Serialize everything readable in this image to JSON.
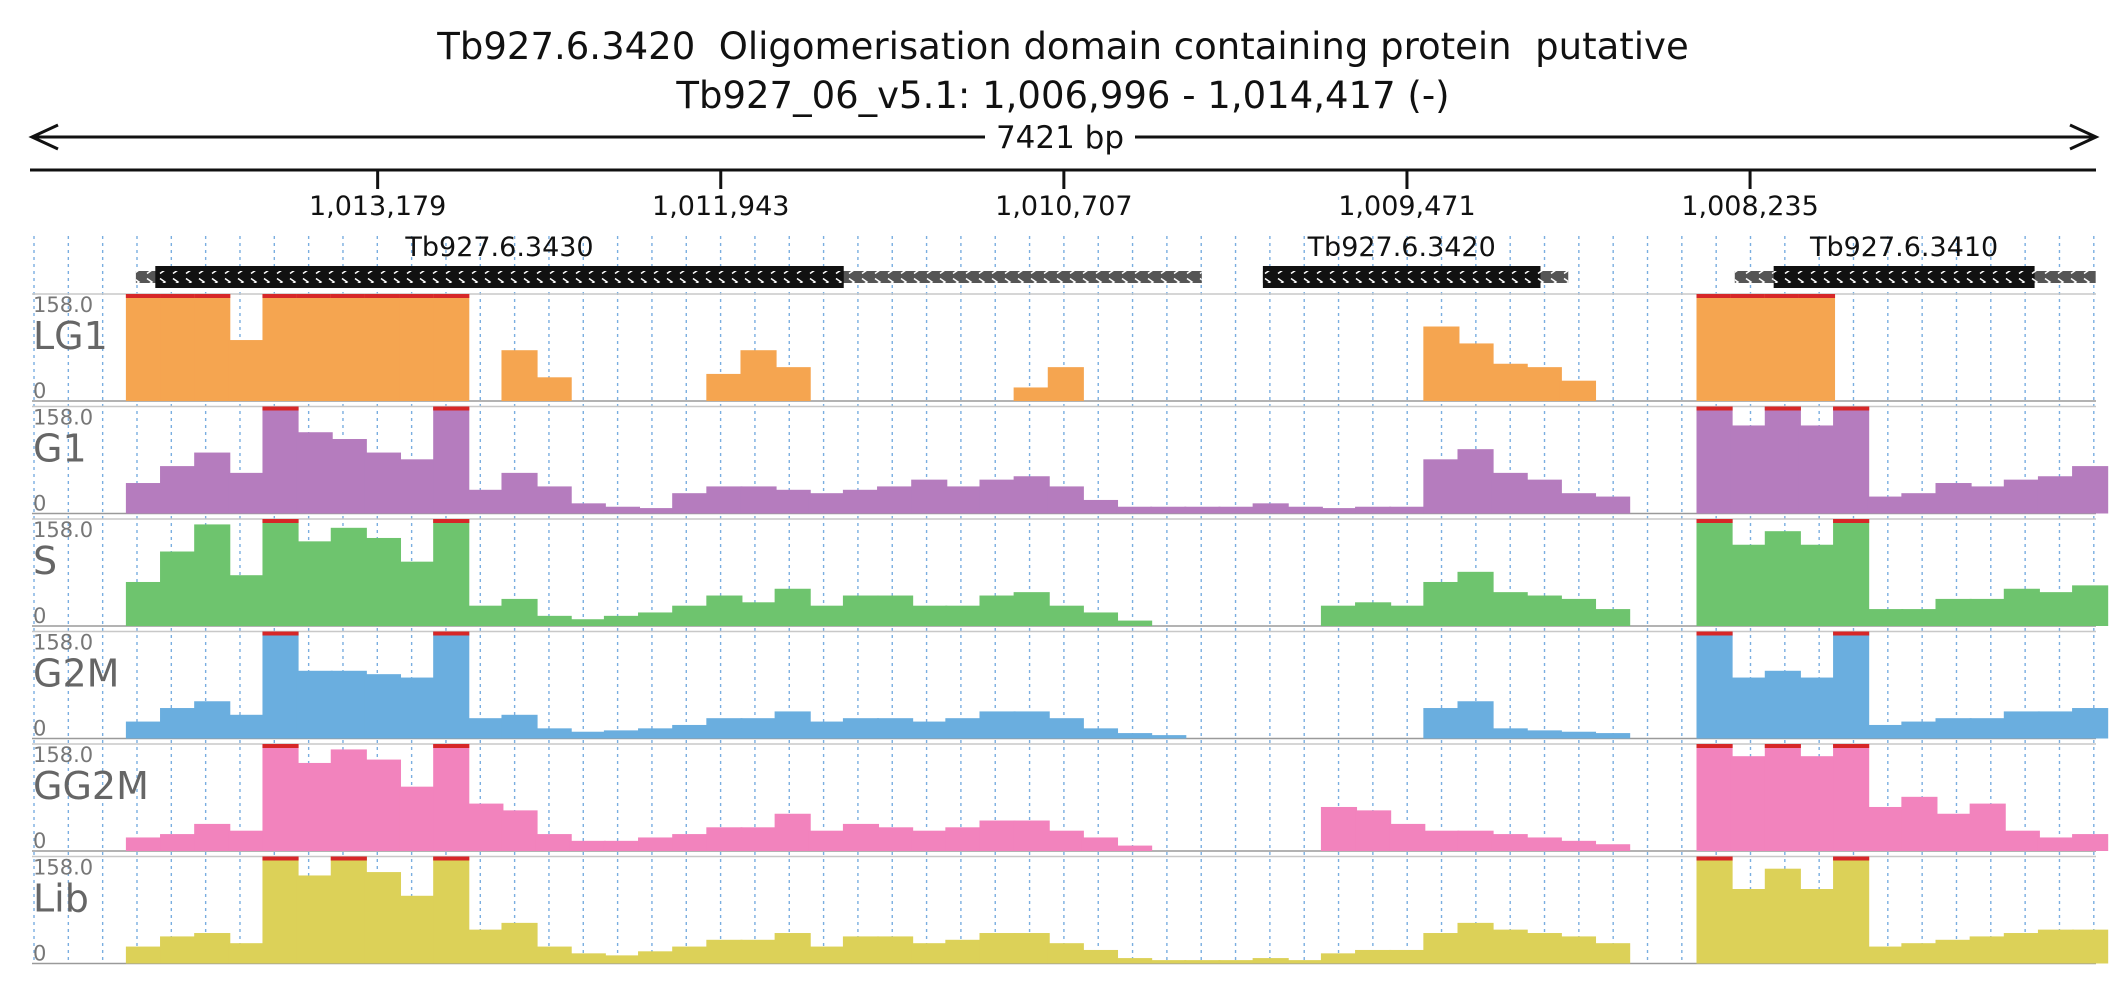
{
  "header": {
    "title": "Tb927.6.3420  Oligomerisation domain containing protein  putative",
    "location": "Tb927_06_v5.1: 1,006,996 - 1,014,417 (-)",
    "span_label": "7421 bp"
  },
  "chart_data": {
    "type": "area",
    "title": "Tb927.6.3420  Oligomerisation domain containing protein  putative",
    "subtitle": "Tb927_06_v5.1: 1,006,996 - 1,014,417 (-)",
    "x_range": [
      1014417,
      1006996
    ],
    "x_direction": "descending",
    "ticks": [
      {
        "pos": 1013179,
        "label": "1,013,179"
      },
      {
        "pos": 1011943,
        "label": "1,011,943"
      },
      {
        "pos": 1010707,
        "label": "1,010,707"
      },
      {
        "pos": 1009471,
        "label": "1,009,471"
      },
      {
        "pos": 1008235,
        "label": "1,008,235"
      }
    ],
    "genes": [
      {
        "name": "Tb927.6.3430",
        "utr": [
          1014050,
          1010210
        ],
        "cds": [
          1013980,
          1011500
        ]
      },
      {
        "name": "Tb927.6.3420",
        "utr": [
          1009990,
          1008890
        ],
        "cds": [
          1009990,
          1008990
        ]
      },
      {
        "name": "Tb927.6.3410",
        "utr": [
          1008290,
          1006990
        ],
        "cds": [
          1008150,
          1007210
        ]
      }
    ],
    "ylim": [
      0,
      158.0
    ],
    "y_max_label": "158.0",
    "y_min_label": "0",
    "colors": {
      "LG1": "#f5a550",
      "G1": "#b57cbe",
      "S": "#6ec46e",
      "G2M": "#6aaedf",
      "GG2M": "#f283bd",
      "Lib": "#dcd158",
      "clip": "#d62728"
    },
    "x_bins": [
      1014022,
      1013899,
      1013776,
      1013653,
      1013530,
      1013407,
      1013284,
      1013161,
      1013038,
      1012915,
      1012792,
      1012669,
      1012546,
      1012423,
      1012300,
      1012177,
      1012054,
      1011931,
      1011808,
      1011685,
      1011562,
      1011439,
      1011316,
      1011193,
      1011070,
      1010947,
      1010824,
      1010701,
      1010578,
      1010455,
      1010332,
      1010209,
      1010086,
      1009963,
      1009840,
      1009717,
      1009594,
      1009471,
      1009348,
      1009225,
      1009102,
      1008979,
      1008856,
      1008733,
      1008610,
      1008487,
      1008364,
      1008241,
      1008118,
      1007995,
      1007872,
      1007749,
      1007626,
      1007503,
      1007380,
      1007257,
      1007134,
      1007011
    ],
    "series": [
      {
        "name": "LG1",
        "values": [
          158,
          158,
          158,
          90,
          158,
          158,
          158,
          158,
          158,
          158,
          0,
          75,
          35,
          0,
          0,
          0,
          0,
          40,
          75,
          50,
          0,
          0,
          0,
          0,
          0,
          0,
          20,
          50,
          0,
          0,
          0,
          0,
          0,
          0,
          0,
          0,
          0,
          0,
          110,
          85,
          55,
          50,
          30,
          0,
          0,
          0,
          158,
          158,
          158,
          158,
          0,
          0,
          0,
          0,
          0,
          0,
          0,
          0
        ]
      },
      {
        "name": "G1",
        "values": [
          45,
          70,
          90,
          60,
          158,
          120,
          110,
          90,
          80,
          158,
          35,
          60,
          40,
          15,
          10,
          8,
          30,
          40,
          40,
          35,
          30,
          35,
          40,
          50,
          40,
          50,
          55,
          40,
          20,
          10,
          10,
          10,
          10,
          15,
          10,
          8,
          10,
          10,
          80,
          95,
          60,
          50,
          30,
          25,
          0,
          0,
          158,
          130,
          158,
          130,
          158,
          25,
          30,
          45,
          40,
          50,
          55,
          70
        ]
      },
      {
        "name": "S",
        "values": [
          65,
          110,
          150,
          75,
          158,
          125,
          145,
          130,
          95,
          158,
          30,
          40,
          15,
          10,
          15,
          20,
          30,
          45,
          35,
          55,
          30,
          45,
          45,
          30,
          30,
          45,
          50,
          30,
          20,
          8,
          0,
          0,
          0,
          0,
          0,
          30,
          35,
          30,
          65,
          80,
          50,
          45,
          40,
          25,
          0,
          0,
          158,
          120,
          140,
          120,
          158,
          25,
          25,
          40,
          40,
          55,
          50,
          60
        ]
      },
      {
        "name": "G2M",
        "values": [
          25,
          45,
          55,
          35,
          158,
          100,
          100,
          95,
          90,
          158,
          30,
          35,
          15,
          10,
          12,
          15,
          20,
          30,
          30,
          40,
          25,
          30,
          30,
          25,
          30,
          40,
          40,
          30,
          15,
          8,
          5,
          0,
          0,
          0,
          0,
          0,
          0,
          0,
          45,
          55,
          15,
          12,
          10,
          8,
          0,
          0,
          158,
          90,
          100,
          90,
          158,
          20,
          25,
          30,
          30,
          40,
          40,
          45
        ]
      },
      {
        "name": "GG2M",
        "values": [
          20,
          25,
          40,
          30,
          158,
          130,
          150,
          135,
          95,
          158,
          70,
          60,
          25,
          15,
          15,
          20,
          25,
          35,
          35,
          55,
          30,
          40,
          35,
          30,
          35,
          45,
          45,
          30,
          20,
          8,
          0,
          0,
          0,
          0,
          0,
          65,
          60,
          40,
          30,
          30,
          25,
          20,
          15,
          10,
          0,
          0,
          158,
          140,
          158,
          140,
          158,
          65,
          80,
          55,
          70,
          30,
          20,
          25
        ]
      },
      {
        "name": "Lib",
        "values": [
          25,
          40,
          45,
          30,
          158,
          130,
          158,
          135,
          100,
          158,
          50,
          60,
          25,
          15,
          12,
          18,
          25,
          35,
          35,
          45,
          25,
          40,
          40,
          30,
          35,
          45,
          45,
          30,
          20,
          8,
          5,
          5,
          5,
          8,
          5,
          15,
          20,
          20,
          45,
          60,
          50,
          45,
          40,
          30,
          0,
          0,
          158,
          110,
          140,
          110,
          158,
          25,
          30,
          35,
          40,
          45,
          50,
          50
        ]
      }
    ]
  }
}
